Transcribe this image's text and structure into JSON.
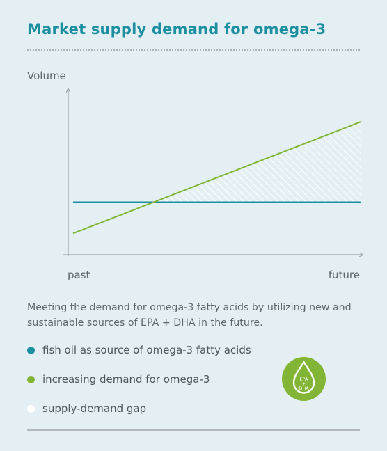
{
  "title": "Market supply demand for omega-3",
  "description": "Meeting the demand for omega-3 fatty acids by utilizing new and sustainable sources of EPA + DHA in the future.",
  "legend": [
    {
      "label": "fish oil as source of omega-3 fatty acids",
      "color": "#1c8fa0"
    },
    {
      "label": "increasing demand for omega-3",
      "color": "#82b535"
    },
    {
      "label": "supply-demand gap",
      "color": "#ffffff"
    }
  ],
  "badge": {
    "line1": "EPA",
    "line2": "+",
    "line3": "DHA",
    "color": "#82b535"
  },
  "chart_data": {
    "type": "line",
    "ylabel": "Volume",
    "xlabel": "",
    "x_tick_labels": [
      "past",
      "future"
    ],
    "x": [
      0,
      1
    ],
    "ylim": [
      0,
      1
    ],
    "series": [
      {
        "name": "fish oil as source of omega-3 fatty acids",
        "values": [
          0.32,
          0.32
        ],
        "color": "#1c8fa0"
      },
      {
        "name": "increasing demand for omega-3",
        "values": [
          0.13,
          0.81
        ],
        "color": "#82b535"
      }
    ],
    "shaded_region": "supply-demand gap",
    "grid": false
  }
}
